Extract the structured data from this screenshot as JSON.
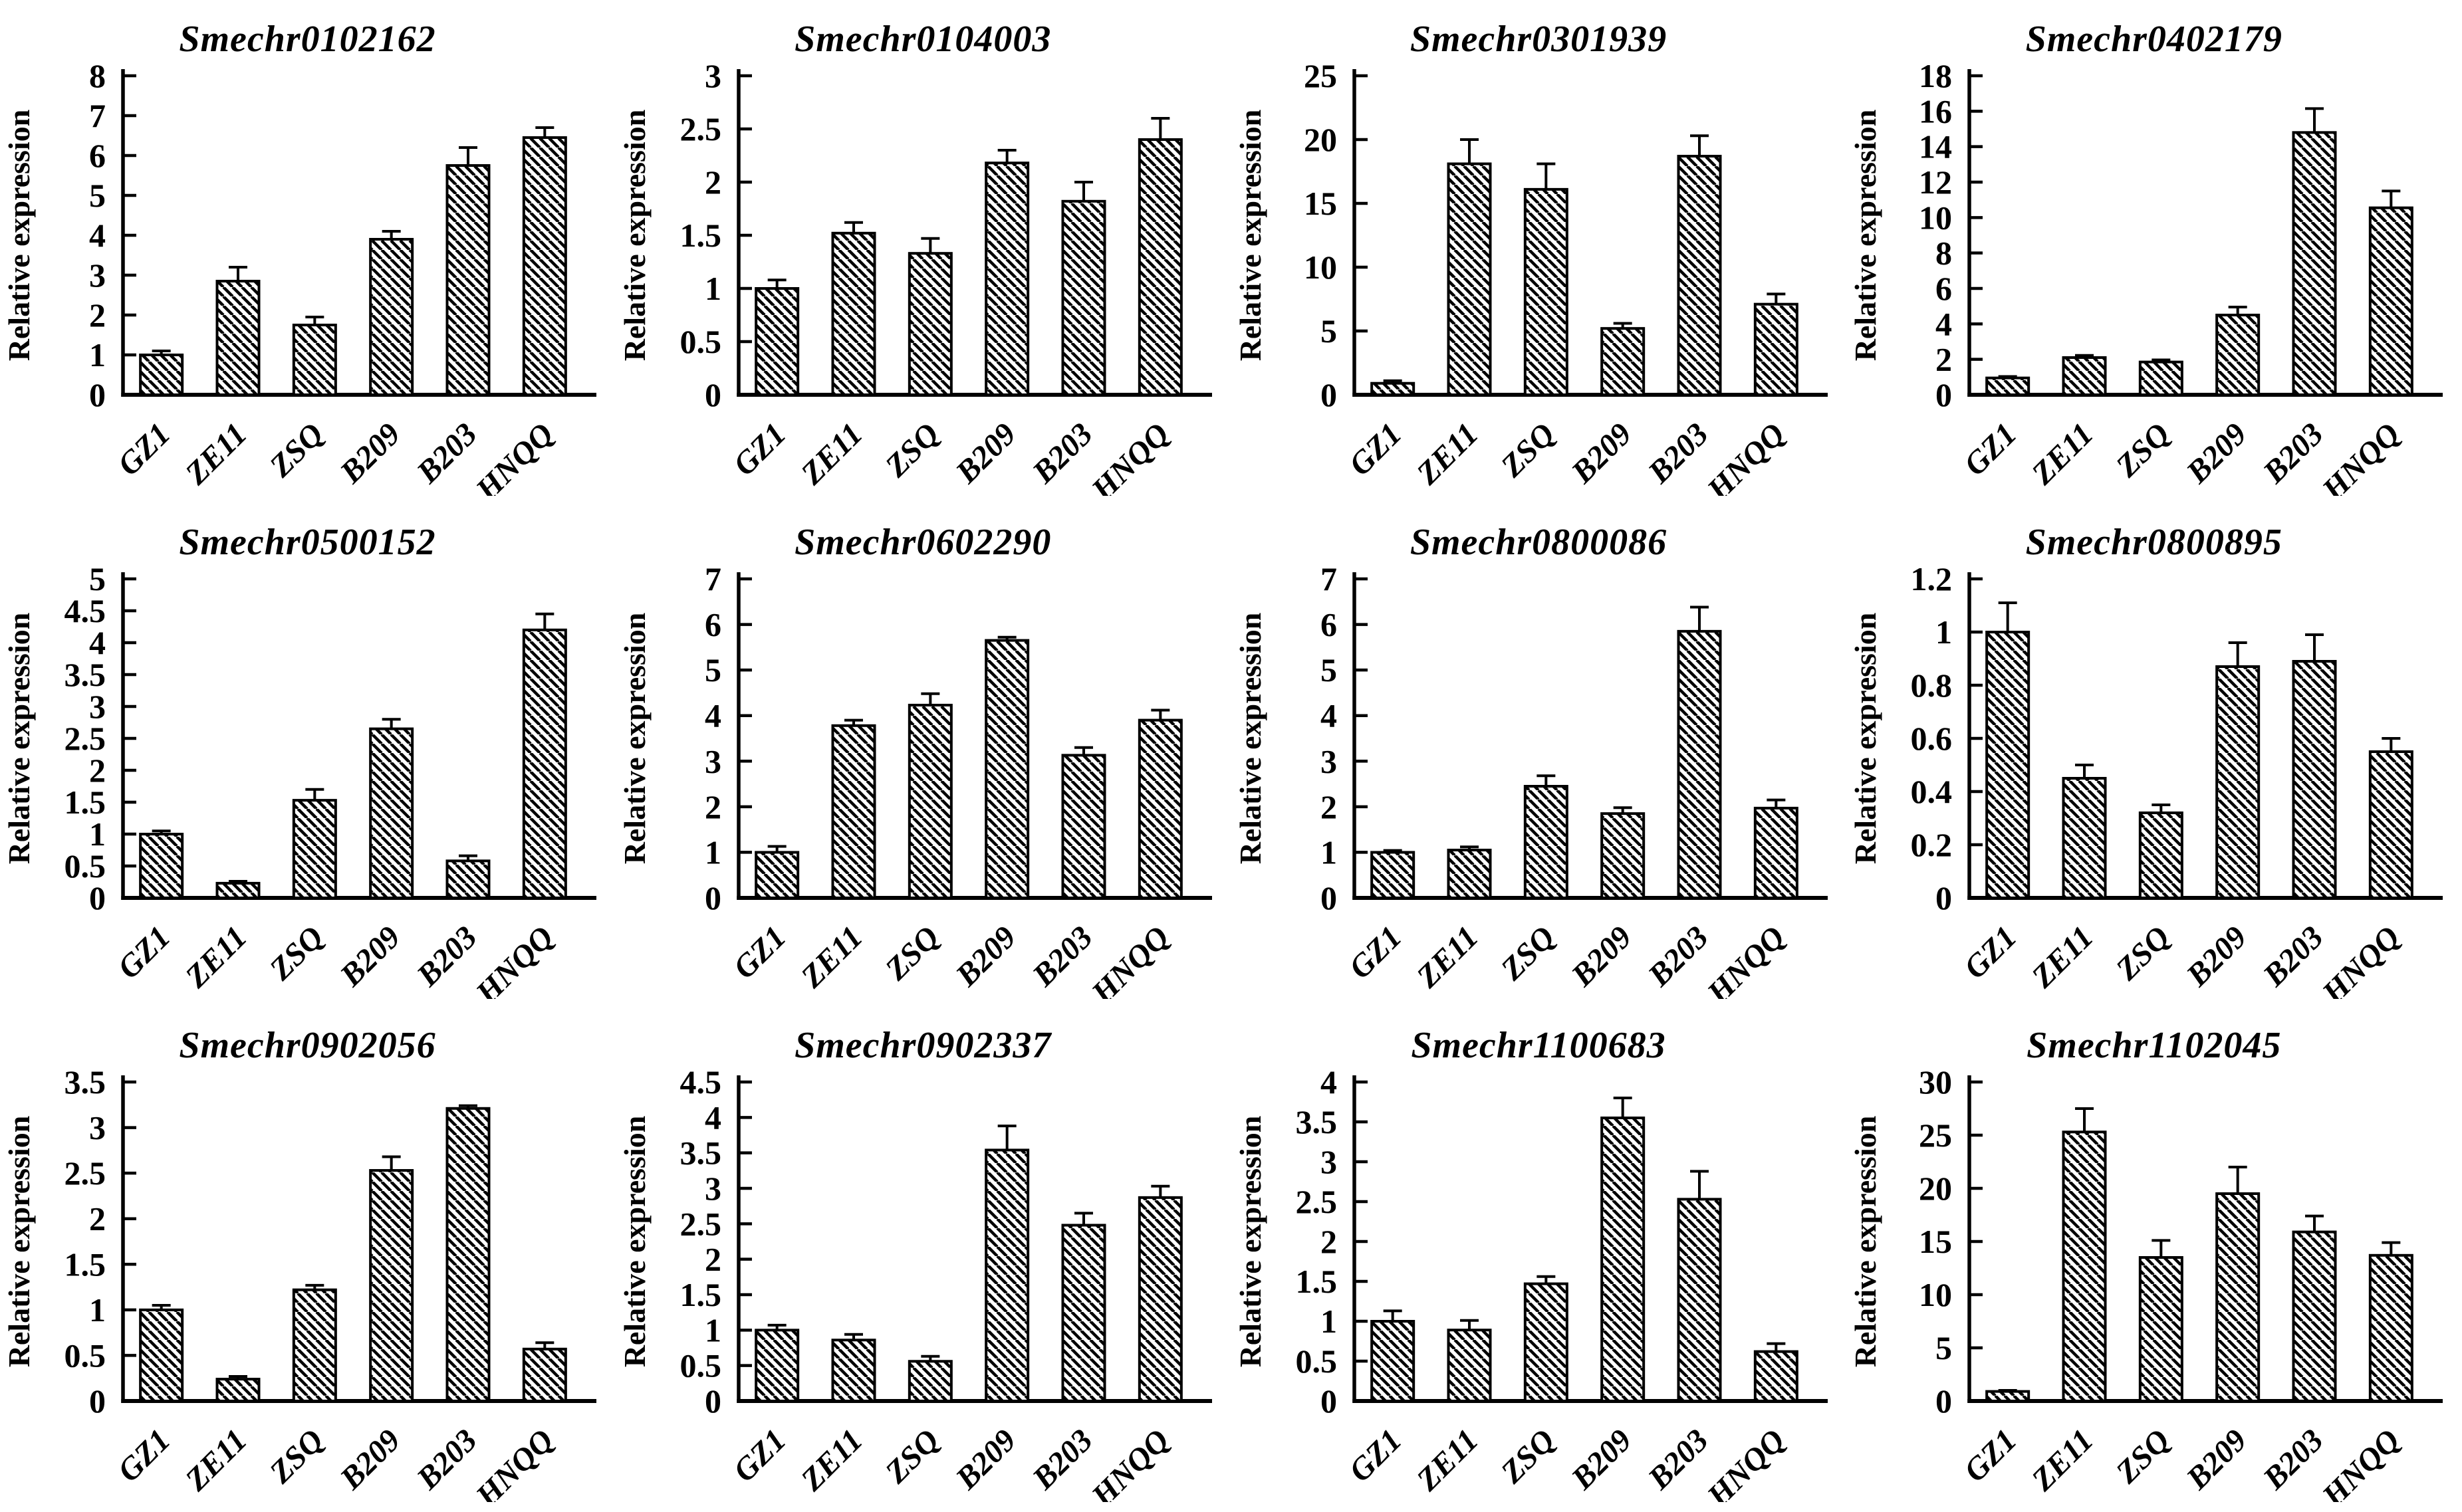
{
  "figure": {
    "rows": 3,
    "columns": 4,
    "ylabel": "Relative expression",
    "categories": [
      "GZ1",
      "ZE11",
      "ZSQ",
      "B209",
      "B203",
      "HNQQ"
    ]
  },
  "style": {
    "ink": "#000000",
    "background": "#ffffff",
    "bar_fill": "diagonal-backslash-hatch"
  },
  "chart_data": [
    {
      "type": "bar",
      "title": "Smechr0102162",
      "ylabel": "Relative expression",
      "categories": [
        "GZ1",
        "ZE11",
        "ZSQ",
        "B209",
        "B203",
        "HNQQ"
      ],
      "values": [
        1.0,
        2.85,
        1.75,
        3.9,
        5.75,
        6.45
      ],
      "errors": [
        0.1,
        0.35,
        0.2,
        0.2,
        0.45,
        0.25
      ],
      "ylim": [
        0,
        8
      ],
      "ytick_step": 1,
      "grid": false
    },
    {
      "type": "bar",
      "title": "Smechr0104003",
      "ylabel": "Relative expression",
      "categories": [
        "GZ1",
        "ZE11",
        "ZSQ",
        "B209",
        "B203",
        "HNQQ"
      ],
      "values": [
        1.0,
        1.52,
        1.33,
        2.18,
        1.82,
        2.4
      ],
      "errors": [
        0.08,
        0.1,
        0.14,
        0.12,
        0.18,
        0.2
      ],
      "ylim": [
        0,
        3
      ],
      "ytick_step": 0.5,
      "grid": false
    },
    {
      "type": "bar",
      "title": "Smechr0301939",
      "ylabel": "Relative expression",
      "categories": [
        "GZ1",
        "ZE11",
        "ZSQ",
        "B209",
        "B203",
        "HNQQ"
      ],
      "values": [
        0.9,
        18.1,
        16.1,
        5.2,
        18.7,
        7.1
      ],
      "errors": [
        0.2,
        1.9,
        2.0,
        0.4,
        1.6,
        0.8
      ],
      "ylim": [
        0,
        25
      ],
      "ytick_step": 5,
      "grid": false
    },
    {
      "type": "bar",
      "title": "Smechr0402179",
      "ylabel": "Relative expression",
      "categories": [
        "GZ1",
        "ZE11",
        "ZSQ",
        "B209",
        "B203",
        "HNQQ"
      ],
      "values": [
        0.95,
        2.1,
        1.85,
        4.5,
        14.8,
        10.55
      ],
      "errors": [
        0.08,
        0.12,
        0.12,
        0.45,
        1.35,
        0.95
      ],
      "ylim": [
        0,
        18
      ],
      "ytick_step": 2,
      "grid": false
    },
    {
      "type": "bar",
      "title": "Smechr0500152",
      "ylabel": "Relative expression",
      "categories": [
        "GZ1",
        "ZE11",
        "ZSQ",
        "B209",
        "B203",
        "HNQQ"
      ],
      "values": [
        1.0,
        0.23,
        1.53,
        2.65,
        0.58,
        4.2
      ],
      "errors": [
        0.05,
        0.03,
        0.17,
        0.15,
        0.08,
        0.25
      ],
      "ylim": [
        0,
        5
      ],
      "ytick_step": 0.5,
      "grid": false
    },
    {
      "type": "bar",
      "title": "Smechr0602290",
      "ylabel": "Relative expression",
      "categories": [
        "GZ1",
        "ZE11",
        "ZSQ",
        "B209",
        "B203",
        "HNQQ"
      ],
      "values": [
        1.0,
        3.78,
        4.23,
        5.65,
        3.13,
        3.9
      ],
      "errors": [
        0.13,
        0.12,
        0.25,
        0.07,
        0.17,
        0.22
      ],
      "ylim": [
        0,
        7
      ],
      "ytick_step": 1,
      "grid": false
    },
    {
      "type": "bar",
      "title": "Smechr0800086",
      "ylabel": "Relative expression",
      "categories": [
        "GZ1",
        "ZE11",
        "ZSQ",
        "B209",
        "B203",
        "HNQQ"
      ],
      "values": [
        1.0,
        1.05,
        2.45,
        1.85,
        5.85,
        1.97
      ],
      "errors": [
        0.04,
        0.07,
        0.23,
        0.13,
        0.53,
        0.18
      ],
      "ylim": [
        0,
        7
      ],
      "ytick_step": 1,
      "grid": false
    },
    {
      "type": "bar",
      "title": "Smechr0800895",
      "ylabel": "Relative expression",
      "categories": [
        "GZ1",
        "ZE11",
        "ZSQ",
        "B209",
        "B203",
        "HNQQ"
      ],
      "values": [
        1.0,
        0.45,
        0.32,
        0.87,
        0.89,
        0.55
      ],
      "errors": [
        0.11,
        0.05,
        0.03,
        0.09,
        0.1,
        0.05
      ],
      "ylim": [
        0,
        1.2
      ],
      "ytick_step": 0.2,
      "grid": false
    },
    {
      "type": "bar",
      "title": "Smechr0902056",
      "ylabel": "Relative expression",
      "categories": [
        "GZ1",
        "ZE11",
        "ZSQ",
        "B209",
        "B203",
        "HNQQ"
      ],
      "values": [
        1.0,
        0.24,
        1.22,
        2.53,
        3.21,
        0.57
      ],
      "errors": [
        0.05,
        0.03,
        0.05,
        0.15,
        0.03,
        0.07
      ],
      "ylim": [
        0,
        3.5
      ],
      "ytick_step": 0.5,
      "grid": false
    },
    {
      "type": "bar",
      "title": "Smechr0902337",
      "ylabel": "Relative expression",
      "categories": [
        "GZ1",
        "ZE11",
        "ZSQ",
        "B209",
        "B203",
        "HNQQ"
      ],
      "values": [
        1.0,
        0.86,
        0.56,
        3.54,
        2.48,
        2.87
      ],
      "errors": [
        0.07,
        0.08,
        0.07,
        0.34,
        0.17,
        0.16
      ],
      "ylim": [
        0,
        4.5
      ],
      "ytick_step": 0.5,
      "grid": false
    },
    {
      "type": "bar",
      "title": "Smechr1100683",
      "ylabel": "Relative expression",
      "categories": [
        "GZ1",
        "ZE11",
        "ZSQ",
        "B209",
        "B203",
        "HNQQ"
      ],
      "values": [
        1.0,
        0.89,
        1.47,
        3.55,
        2.53,
        0.62
      ],
      "errors": [
        0.13,
        0.12,
        0.09,
        0.25,
        0.35,
        0.1
      ],
      "ylim": [
        0,
        4
      ],
      "ytick_step": 0.5,
      "grid": false
    },
    {
      "type": "bar",
      "title": "Smechr1102045",
      "ylabel": "Relative expression",
      "categories": [
        "GZ1",
        "ZE11",
        "ZSQ",
        "B209",
        "B203",
        "HNQQ"
      ],
      "values": [
        0.9,
        25.3,
        13.5,
        19.5,
        15.9,
        13.7
      ],
      "errors": [
        0.1,
        2.2,
        1.6,
        2.5,
        1.5,
        1.2
      ],
      "ylim": [
        0,
        30
      ],
      "ytick_step": 5,
      "grid": false
    }
  ]
}
